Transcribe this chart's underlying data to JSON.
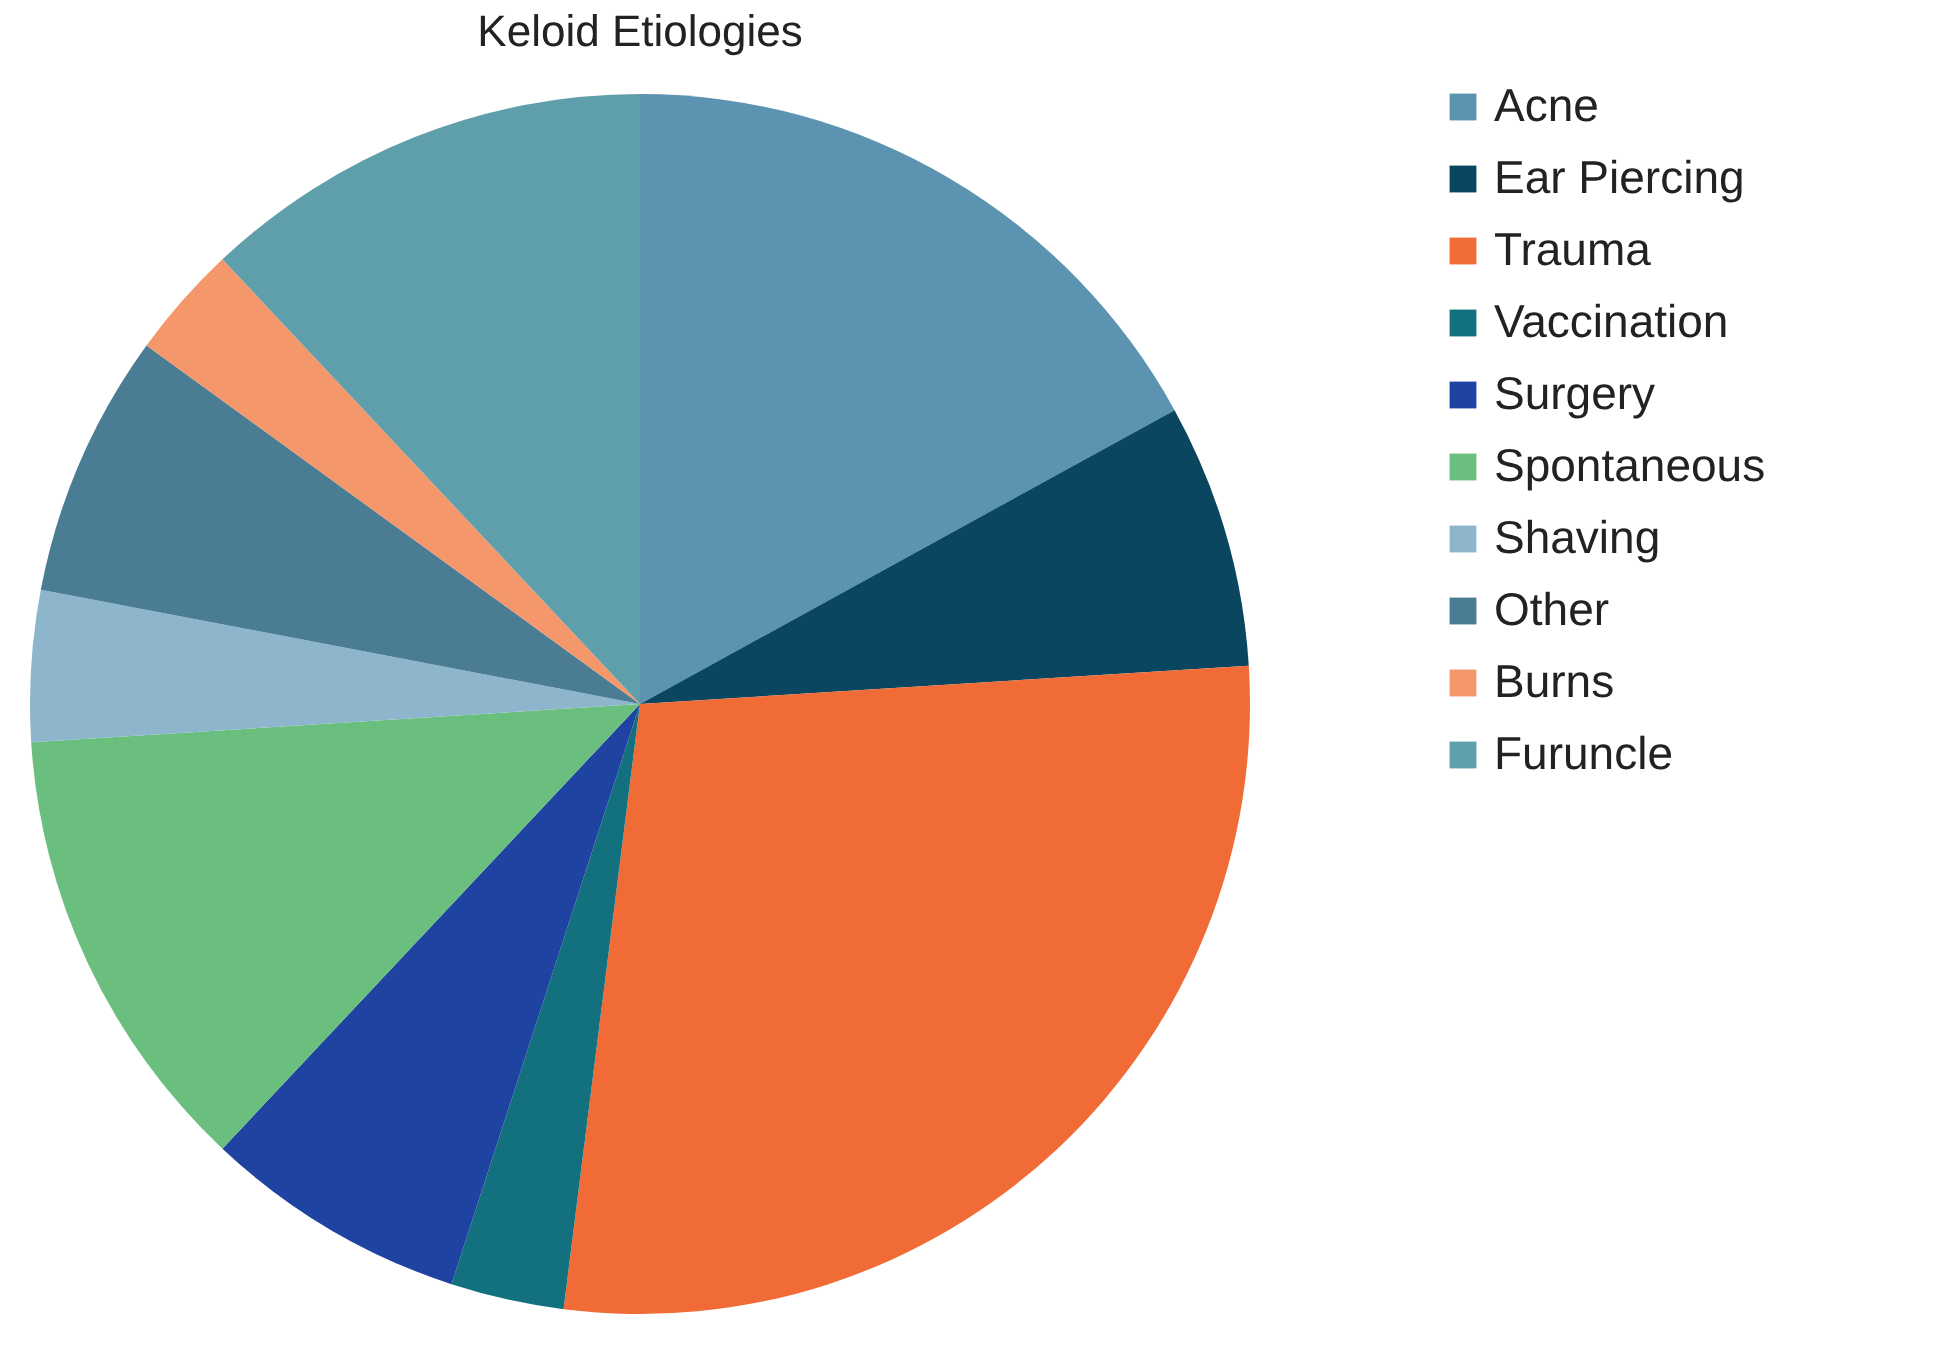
{
  "chart_data": {
    "type": "pie",
    "title": "Keloid Etiologies",
    "categories": [
      "Acne",
      "Ear Piercing",
      "Trauma",
      "Vaccination",
      "Surgery",
      "Spontaneous",
      "Shaving",
      "Other",
      "Burns",
      "Furuncle"
    ],
    "values": [
      17,
      7,
      28,
      3,
      7,
      12,
      4,
      7,
      3,
      12
    ],
    "colors": [
      "#5b93b0",
      "#0b4660",
      "#f06b35",
      "#13717f",
      "#1e43a0",
      "#6abf7e",
      "#8db6cc",
      "#4a7c93",
      "#f4976b",
      "#5f9fab"
    ],
    "legend": "right"
  }
}
